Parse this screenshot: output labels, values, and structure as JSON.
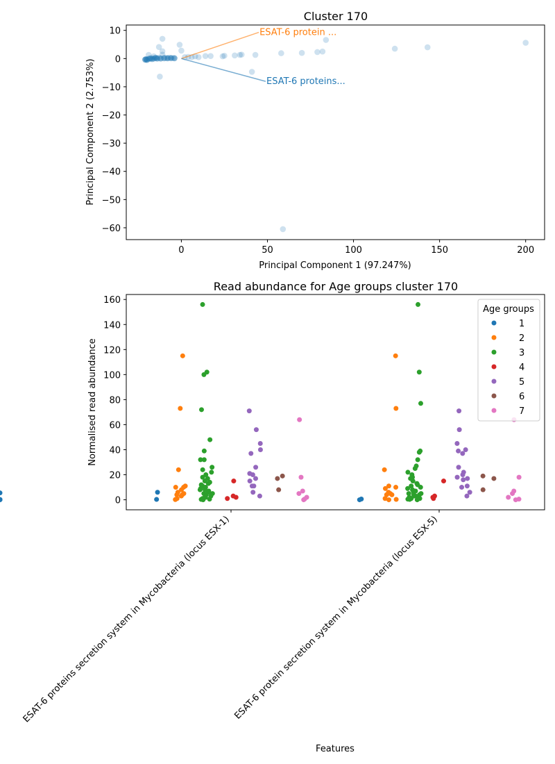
{
  "chart_data": [
    {
      "type": "scatter",
      "title": "Cluster 170",
      "xlabel": "Principal Component 1 (97.247%)",
      "ylabel": "Principal Component 2 (2.753%)",
      "xlim": [
        -32,
        211
      ],
      "ylim": [
        -64.2,
        11.9
      ],
      "xticks": [
        0,
        50,
        100,
        150,
        200
      ],
      "yticks": [
        10,
        0,
        -10,
        -20,
        -30,
        -40,
        -50,
        -60
      ],
      "colors": {
        "points": "#1f77b4",
        "dense": "#1f77b4",
        "loading1": "#1f77b4",
        "loading2": "#ff7f0e"
      },
      "points": [
        [
          -21,
          -0.3
        ],
        [
          -20,
          -0.4
        ],
        [
          -19,
          1.3
        ],
        [
          -18,
          -0.1
        ],
        [
          -17,
          0.2
        ],
        [
          -16,
          0.8
        ],
        [
          -15,
          0.3
        ],
        [
          -14,
          -0.1
        ],
        [
          -13,
          0.3
        ],
        [
          -13,
          4.1
        ],
        [
          -12.5,
          -6.4
        ],
        [
          -12,
          0.1
        ],
        [
          -11,
          7.0
        ],
        [
          -11,
          2.6
        ],
        [
          -11,
          1.4
        ],
        [
          -10,
          0.3
        ],
        [
          -9,
          0.2
        ],
        [
          -8,
          0.2
        ],
        [
          -7,
          0.3
        ],
        [
          -6,
          0.1
        ],
        [
          -5,
          0.2
        ],
        [
          -4,
          0.2
        ],
        [
          -1,
          4.9
        ],
        [
          0,
          2.8
        ],
        [
          2,
          0.5
        ],
        [
          4,
          0.6
        ],
        [
          6,
          0.5
        ],
        [
          8,
          0.8
        ],
        [
          10,
          0.5
        ],
        [
          14,
          0.9
        ],
        [
          17,
          0.9
        ],
        [
          24,
          0.8
        ],
        [
          25,
          1.0
        ],
        [
          31,
          1.1
        ],
        [
          34,
          1.3
        ],
        [
          35,
          1.4
        ],
        [
          41,
          -4.7
        ],
        [
          43,
          1.3
        ],
        [
          58,
          1.9
        ],
        [
          59,
          -60.5
        ],
        [
          70,
          2.0
        ],
        [
          79,
          2.3
        ],
        [
          82,
          2.5
        ],
        [
          84,
          6.6
        ],
        [
          124,
          3.5
        ],
        [
          143,
          4.0
        ],
        [
          200,
          5.6
        ]
      ],
      "dense_points": [
        [
          -21,
          -0.4
        ],
        [
          -20.5,
          -0.2
        ],
        [
          -20,
          -0.5
        ],
        [
          -19,
          -0.1
        ],
        [
          -18,
          0.1
        ],
        [
          -17,
          -0.2
        ],
        [
          -16,
          0.0
        ],
        [
          -15,
          0.2
        ],
        [
          -14,
          0.1
        ],
        [
          -12,
          0.0
        ],
        [
          -10,
          0.1
        ],
        [
          -8,
          0.1
        ],
        [
          -6,
          0.2
        ],
        [
          -4,
          0.1
        ]
      ],
      "loadings": [
        {
          "label": "ESAT-6 protein ...",
          "end": [
            45,
            9.3
          ],
          "color": "#ff7f0e"
        },
        {
          "label": "ESAT-6 proteins...",
          "end": [
            49,
            -8.1
          ],
          "color": "#1f77b4"
        }
      ]
    },
    {
      "type": "strip",
      "title": "Read abundance for Age groups cluster 170",
      "xlabel": "Features",
      "ylabel": "Normalised read abundance",
      "ylim": [
        -8,
        164
      ],
      "yticks": [
        0,
        20,
        40,
        60,
        80,
        100,
        120,
        140,
        160
      ],
      "categories": [
        "ESAT-6 proteins secretion system in Mycobacteria (locus ESX-1)",
        "ESAT-6 protein secretion system in Mycobacteria (locus ESX-5)"
      ],
      "legend": {
        "title": "Age groups",
        "position": "top-right",
        "entries": [
          {
            "label": "1",
            "color": "#1f77b4"
          },
          {
            "label": "2",
            "color": "#ff7f0e"
          },
          {
            "label": "3",
            "color": "#2ca02c"
          },
          {
            "label": "4",
            "color": "#d62728"
          },
          {
            "label": "5",
            "color": "#9467bd"
          },
          {
            "label": "6",
            "color": "#8c564b"
          },
          {
            "label": "7",
            "color": "#e377c2"
          }
        ]
      },
      "series": [
        {
          "name": "1",
          "values": [
            [
              0.3,
              6.0
            ],
            [
              0.0,
              0.6
            ],
            [
              0.2,
              5.5
            ],
            [
              0.0,
              0.2
            ]
          ]
        },
        {
          "name": "2",
          "values": [
            [
              115,
              73,
              24,
              11,
              10,
              10,
              8,
              6,
              5,
              4,
              4,
              3,
              1,
              0.2
            ],
            [
              115,
              73,
              24,
              11,
              10,
              9,
              6,
              5,
              4,
              4,
              1,
              0.3,
              0
            ]
          ]
        },
        {
          "name": "3",
          "values": [
            [
              156,
              102,
              100,
              72,
              48,
              39,
              32,
              32,
              26,
              24,
              22,
              20,
              18,
              17,
              15,
              14,
              13,
              12,
              11,
              10,
              9,
              8,
              8,
              7,
              6,
              5,
              5,
              4,
              4,
              3,
              3,
              2,
              2,
              1,
              1,
              0.5,
              0.3,
              0
            ],
            [
              156,
              102,
              77,
              39,
              38,
              32,
              27,
              25,
              22,
              20,
              18,
              17,
              15,
              13,
              12,
              11,
              10,
              9,
              8,
              7,
              6,
              5,
              5,
              4,
              4,
              3,
              3,
              2,
              2,
              1,
              1,
              0.5,
              0.3,
              0
            ]
          ]
        },
        {
          "name": "4",
          "values": [
            [
              15,
              3,
              2,
              1
            ],
            [
              15,
              3,
              2,
              1
            ]
          ]
        },
        {
          "name": "5",
          "values": [
            [
              71,
              56,
              45,
              40,
              37,
              26,
              21,
              20,
              17,
              15,
              11,
              11,
              6,
              3
            ],
            [
              71,
              56,
              45,
              40,
              39,
              37,
              26,
              22,
              20,
              18,
              17,
              16,
              11,
              10,
              6,
              3
            ]
          ]
        },
        {
          "name": "6",
          "values": [
            [
              19,
              17,
              8
            ],
            [
              19,
              17,
              8
            ]
          ]
        },
        {
          "name": "7",
          "values": [
            [
              64,
              18,
              7,
              5,
              2,
              0.5,
              0
            ],
            [
              64,
              18,
              7,
              5,
              2,
              0.5,
              0
            ]
          ]
        }
      ]
    }
  ]
}
